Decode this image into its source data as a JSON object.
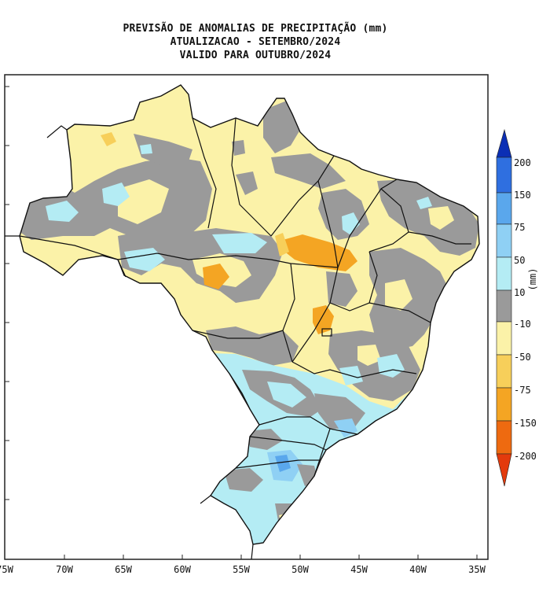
{
  "title": {
    "line1": "PREVISÃO DE ANOMALIAS DE PRECIPITAÇÃO (mm)",
    "line2": "ATUALIZACAO - SETEMBRO/2024",
    "line3": "VALIDO PARA OUTUBRO/2024"
  },
  "map": {
    "longitude_labels": [
      "75W",
      "70W",
      "65W",
      "60W",
      "55W",
      "50W",
      "45W",
      "40W",
      "35W"
    ],
    "unit": "(mm)"
  },
  "legend": {
    "labels": [
      "200",
      "150",
      "75",
      "50",
      "10",
      "-10",
      "-50",
      "-75",
      "-150",
      "-200"
    ],
    "colors": {
      "top_cap": "#0b2fb5",
      "c150_200": "#2f6fe0",
      "c75_150": "#5aa7ec",
      "c50_75": "#8fd0f4",
      "c10_50": "#b4ecf4",
      "cneutral": "#9a9a9a",
      "cm10_m50": "#fbf2a8",
      "cm50_m75": "#f7cf5a",
      "cm75_m150": "#f4a523",
      "cm150_m200": "#ee6a10",
      "bottom_cap": "#e33a0c"
    }
  }
}
